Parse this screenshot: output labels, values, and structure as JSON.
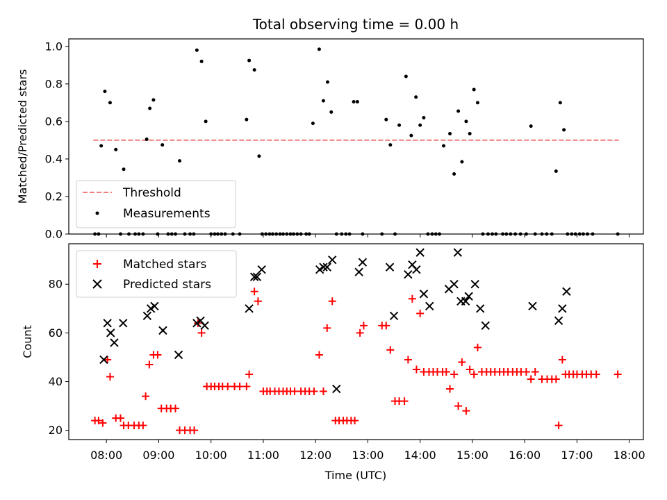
{
  "chart_data": [
    {
      "type": "scatter",
      "title": "Total observing time = 0.00 h",
      "ylabel": "Matched/Predicted stars",
      "xlim": [
        7.28,
        18.27
      ],
      "ylim": [
        0.0,
        1.04
      ],
      "yticks": [
        0.0,
        0.2,
        0.4,
        0.6,
        0.8,
        1.0
      ],
      "ytick_labels": [
        "0.0",
        "0.2",
        "0.4",
        "0.6",
        "0.8",
        "1.0"
      ],
      "grid": false,
      "legend_placement": "lower-left",
      "threshold": {
        "name": "Threshold",
        "value": 0.5,
        "x_range": [
          7.75,
          17.8
        ],
        "color": "#f08080"
      },
      "measurements": {
        "name": "Measurements",
        "color": "#000000",
        "x": [
          7.78,
          7.85,
          7.9,
          7.97,
          8.07,
          8.18,
          8.27,
          8.33,
          8.43,
          8.55,
          8.62,
          8.7,
          8.77,
          8.83,
          8.9,
          8.98,
          9.07,
          9.18,
          9.25,
          9.32,
          9.4,
          9.5,
          9.6,
          9.67,
          9.73,
          9.82,
          9.9,
          10.0,
          10.07,
          10.13,
          10.2,
          10.27,
          10.42,
          10.55,
          10.68,
          10.73,
          10.83,
          10.92,
          10.98,
          11.05,
          11.12,
          11.18,
          11.25,
          11.32,
          11.38,
          11.45,
          11.52,
          11.58,
          11.65,
          11.72,
          11.82,
          11.88,
          11.95,
          12.07,
          12.15,
          12.23,
          12.3,
          12.4,
          12.5,
          12.58,
          12.65,
          12.73,
          12.8,
          12.9,
          13.27,
          13.35,
          13.43,
          13.52,
          13.6,
          13.73,
          13.83,
          13.92,
          14.0,
          14.07,
          14.15,
          14.23,
          14.3,
          14.37,
          14.45,
          14.57,
          14.65,
          14.73,
          14.8,
          14.88,
          14.95,
          15.03,
          15.1,
          15.2,
          15.3,
          15.38,
          15.45,
          15.58,
          15.65,
          15.73,
          15.82,
          15.92,
          16.03,
          16.12,
          16.2,
          16.33,
          16.42,
          16.52,
          16.6,
          16.68,
          16.75,
          16.82,
          16.9,
          16.97,
          17.05,
          17.12,
          17.2,
          17.3,
          17.78
        ],
        "y": [
          0,
          0,
          0.47,
          0.76,
          0.7,
          0.45,
          0,
          0.345,
          0,
          0,
          0,
          0,
          0.505,
          0.67,
          0.715,
          0,
          0.475,
          0,
          0,
          0,
          0.39,
          0,
          0,
          0,
          0.98,
          0.92,
          0.6,
          0,
          0,
          0,
          0,
          0,
          0,
          0,
          0.61,
          0.925,
          0.875,
          0.415,
          0,
          0,
          0,
          0,
          0,
          0,
          0,
          0,
          0,
          0,
          0,
          0,
          0,
          0,
          0.59,
          0.985,
          0.71,
          0.81,
          0.65,
          0,
          0,
          0,
          0,
          0.705,
          0.705,
          0,
          0,
          0.61,
          0.475,
          0,
          0.58,
          0.84,
          0.525,
          0.73,
          0.58,
          0.62,
          0,
          0,
          0,
          0,
          0.47,
          0.535,
          0.32,
          0.655,
          0.385,
          0.6,
          0.535,
          0.77,
          0.7,
          0,
          0,
          0,
          0,
          0,
          0,
          0,
          0,
          0,
          0,
          0.575,
          0,
          0,
          0,
          0,
          0.335,
          0.7,
          0.555,
          0,
          0,
          0,
          0,
          0,
          0,
          0,
          0
        ]
      }
    },
    {
      "type": "scatter",
      "xlabel": "Time (UTC)",
      "ylabel": "Count",
      "xlim": [
        7.28,
        18.27
      ],
      "ylim": [
        16.2,
        96.6
      ],
      "xticks": [
        8,
        9,
        10,
        11,
        12,
        13,
        14,
        15,
        16,
        17,
        18
      ],
      "xtick_labels": [
        "08:00",
        "09:00",
        "10:00",
        "11:00",
        "12:00",
        "13:00",
        "14:00",
        "15:00",
        "16:00",
        "17:00",
        "18:00"
      ],
      "yticks": [
        20,
        40,
        60,
        80
      ],
      "ytick_labels": [
        "20",
        "40",
        "60",
        "80"
      ],
      "grid": false,
      "legend_placement": "upper-left",
      "series": [
        {
          "name": "Matched stars",
          "marker": "plus",
          "color": "#ff0000",
          "x": [
            7.78,
            7.85,
            7.93,
            8.02,
            8.07,
            8.18,
            8.27,
            8.33,
            8.42,
            8.53,
            8.62,
            8.7,
            8.75,
            8.82,
            8.9,
            8.98,
            9.05,
            9.15,
            9.23,
            9.32,
            9.4,
            9.5,
            9.6,
            9.68,
            9.75,
            9.82,
            9.92,
            10.0,
            10.07,
            10.15,
            10.22,
            10.32,
            10.45,
            10.55,
            10.68,
            10.73,
            10.83,
            10.9,
            11.0,
            11.07,
            11.13,
            11.22,
            11.3,
            11.38,
            11.45,
            11.52,
            11.6,
            11.72,
            11.8,
            11.88,
            11.97,
            12.07,
            12.15,
            12.22,
            12.32,
            12.38,
            12.45,
            12.53,
            12.6,
            12.68,
            12.75,
            12.85,
            12.92,
            13.27,
            13.35,
            13.43,
            13.52,
            13.6,
            13.7,
            13.77,
            13.85,
            13.93,
            14.0,
            14.07,
            14.17,
            14.25,
            14.33,
            14.43,
            14.5,
            14.57,
            14.65,
            14.73,
            14.8,
            14.88,
            14.95,
            15.03,
            15.1,
            15.18,
            15.27,
            15.35,
            15.43,
            15.52,
            15.6,
            15.68,
            15.77,
            15.85,
            15.93,
            16.03,
            16.12,
            16.2,
            16.33,
            16.43,
            16.52,
            16.6,
            16.65,
            16.72,
            16.78,
            16.85,
            16.93,
            17.0,
            17.1,
            17.18,
            17.27,
            17.37,
            17.78
          ],
          "y": [
            24,
            24,
            23,
            49,
            42,
            25,
            25,
            22,
            22,
            22,
            22,
            22,
            34,
            47,
            51,
            51,
            29,
            29,
            29,
            29,
            20,
            20,
            20,
            20,
            64,
            60,
            38,
            38,
            38,
            38,
            38,
            38,
            38,
            38,
            38,
            43,
            77,
            73,
            36,
            36,
            36,
            36,
            36,
            36,
            36,
            36,
            36,
            36,
            36,
            36,
            36,
            51,
            36,
            62,
            73,
            24,
            24,
            24,
            24,
            24,
            24,
            60,
            63,
            63,
            63,
            53,
            32,
            32,
            32,
            49,
            74,
            45,
            68,
            44,
            44,
            44,
            44,
            44,
            44,
            37,
            43,
            30,
            48,
            28,
            45,
            43,
            54,
            44,
            44,
            44,
            44,
            44,
            44,
            44,
            44,
            44,
            44,
            44,
            41,
            44,
            41,
            41,
            41,
            41,
            22,
            49,
            43,
            43,
            43,
            43,
            43,
            43,
            43,
            43,
            43
          ]
        },
        {
          "name": "Predicted stars",
          "marker": "x",
          "color": "#000000",
          "x": [
            7.95,
            8.02,
            8.08,
            8.15,
            8.32,
            8.78,
            8.85,
            8.92,
            9.08,
            9.38,
            9.73,
            9.8,
            9.88,
            10.73,
            10.83,
            10.88,
            10.97,
            12.08,
            12.15,
            12.22,
            12.32,
            12.4,
            12.83,
            12.9,
            13.42,
            13.5,
            13.77,
            13.85,
            13.93,
            14.0,
            14.07,
            14.18,
            14.55,
            14.65,
            14.72,
            14.78,
            14.87,
            14.93,
            15.05,
            15.15,
            15.25,
            16.15,
            16.65,
            16.72,
            16.8
          ],
          "y": [
            49,
            64,
            60,
            56,
            64,
            67,
            70,
            71,
            61,
            51,
            64,
            65,
            63,
            70,
            83,
            83,
            86,
            86,
            87,
            87,
            90,
            37,
            85,
            89,
            87,
            67,
            84,
            88,
            86,
            93,
            76,
            71,
            78,
            80,
            93,
            73,
            73,
            75,
            80,
            70,
            63,
            71,
            65,
            70,
            77
          ]
        }
      ]
    }
  ]
}
